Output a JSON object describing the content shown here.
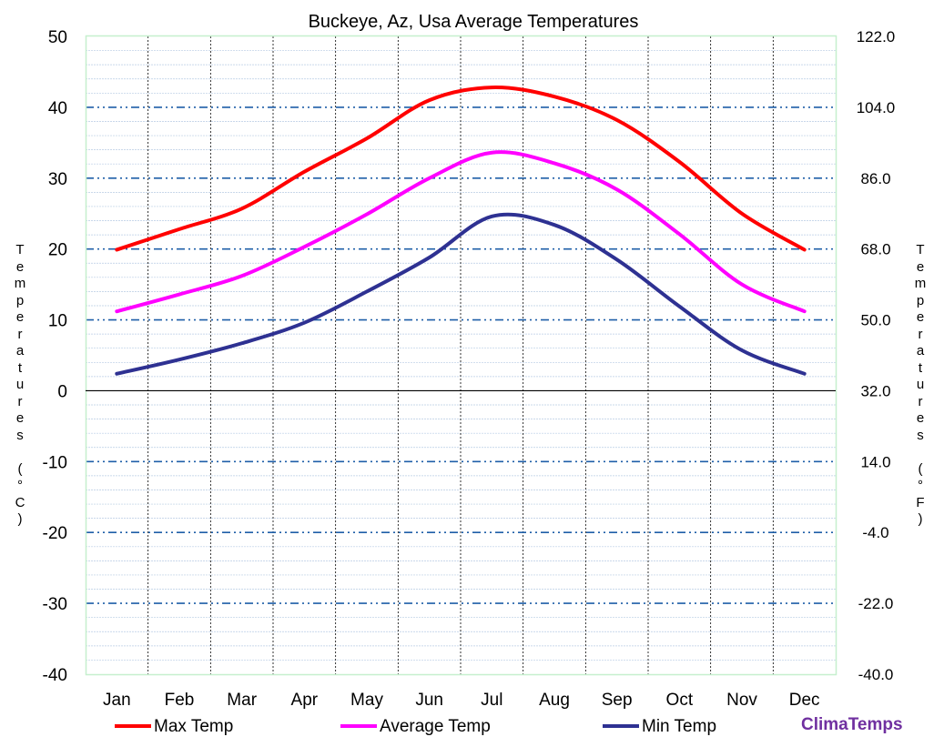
{
  "chart_data": {
    "type": "line",
    "title": "Buckeye, Az, Usa Average Temperatures",
    "categories": [
      "Jan",
      "Feb",
      "Mar",
      "Apr",
      "May",
      "Jun",
      "Jul",
      "Aug",
      "Sep",
      "Oct",
      "Nov",
      "Dec"
    ],
    "series": [
      {
        "name": "Max Temp",
        "color": "#ff0000",
        "values": [
          19.9,
          22.8,
          25.7,
          30.9,
          35.6,
          41.0,
          42.8,
          41.5,
          38.2,
          32.3,
          25.0,
          19.9
        ]
      },
      {
        "name": "Average Temp",
        "color": "#ff00ff",
        "values": [
          11.2,
          13.6,
          16.2,
          20.3,
          24.9,
          30.0,
          33.6,
          32.1,
          28.4,
          22.1,
          15.0,
          11.2
        ]
      },
      {
        "name": "Min Temp",
        "color": "#2e3192",
        "values": [
          2.4,
          4.4,
          6.7,
          9.6,
          14.0,
          18.8,
          24.6,
          23.4,
          18.5,
          11.9,
          5.7,
          2.4
        ]
      }
    ],
    "ylabel_left": "Temperatures (°C)",
    "ylabel_right": "Temperatures (°F)",
    "ylim": [
      -40,
      50
    ],
    "yticks_left": [
      "50",
      "40",
      "30",
      "20",
      "10",
      "0",
      "-10",
      "-20",
      "-30",
      "-40"
    ],
    "yticks_right": [
      "122.0",
      "104.0",
      "86.0",
      "68.0",
      "50.0",
      "32.0",
      "14.0",
      "-4.0",
      "-22.0",
      "-40.0"
    ],
    "grid": true,
    "legend_position": "bottom"
  },
  "brand": "ClimaTemps"
}
